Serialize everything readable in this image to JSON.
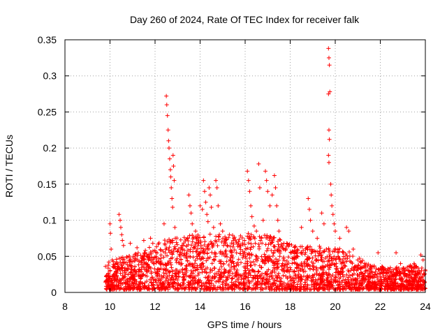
{
  "chart_data": {
    "type": "scatter",
    "title": "Day 260 of 2024, Rate Of TEC Index for receiver falk",
    "xlabel": "GPS time / hours",
    "ylabel": "ROTI / TECUs",
    "xlim": [
      8,
      24
    ],
    "ylim": [
      0,
      0.35
    ],
    "x_ticks": [
      8,
      10,
      12,
      14,
      16,
      18,
      20,
      22,
      24
    ],
    "x_tick_labels": [
      "8",
      "10",
      "12",
      "14",
      "16",
      "18",
      "20",
      "22",
      "24"
    ],
    "y_ticks": [
      0,
      0.05,
      0.1,
      0.15,
      0.2,
      0.25,
      0.3,
      0.35
    ],
    "y_tick_labels": [
      "0",
      "0.05",
      "0.1",
      "0.15",
      "0.2",
      "0.25",
      "0.3",
      "0.35"
    ],
    "grid": true,
    "marker": "plus",
    "marker_color": "#ff0000",
    "series": [
      {
        "points": [
          [
            9.8,
            0.036
          ],
          [
            9.95,
            0.042
          ],
          [
            10.0,
            0.095
          ],
          [
            10.02,
            0.082
          ],
          [
            10.05,
            0.06
          ],
          [
            10.1,
            0.045
          ],
          [
            10.4,
            0.108
          ],
          [
            10.45,
            0.1
          ],
          [
            10.48,
            0.09
          ],
          [
            10.52,
            0.08
          ],
          [
            10.55,
            0.072
          ],
          [
            10.6,
            0.065
          ],
          [
            10.9,
            0.068
          ],
          [
            11.2,
            0.062
          ],
          [
            11.5,
            0.072
          ],
          [
            11.8,
            0.075
          ],
          [
            11.9,
            0.068
          ],
          [
            12.4,
            0.095
          ],
          [
            12.5,
            0.272
          ],
          [
            12.52,
            0.26
          ],
          [
            12.55,
            0.245
          ],
          [
            12.58,
            0.225
          ],
          [
            12.6,
            0.21
          ],
          [
            12.62,
            0.2
          ],
          [
            12.65,
            0.185
          ],
          [
            12.68,
            0.17
          ],
          [
            12.7,
            0.16
          ],
          [
            12.72,
            0.145
          ],
          [
            12.75,
            0.13
          ],
          [
            12.78,
            0.118
          ],
          [
            12.8,
            0.19
          ],
          [
            12.82,
            0.175
          ],
          [
            12.85,
            0.155
          ],
          [
            12.88,
            0.09
          ],
          [
            12.9,
            0.075
          ],
          [
            13.2,
            0.065
          ],
          [
            13.5,
            0.135
          ],
          [
            13.55,
            0.12
          ],
          [
            13.6,
            0.11
          ],
          [
            13.65,
            0.095
          ],
          [
            13.8,
            0.085
          ],
          [
            14.0,
            0.12
          ],
          [
            14.1,
            0.115
          ],
          [
            14.15,
            0.155
          ],
          [
            14.2,
            0.14
          ],
          [
            14.25,
            0.125
          ],
          [
            14.3,
            0.108
          ],
          [
            14.35,
            0.098
          ],
          [
            14.4,
            0.145
          ],
          [
            14.45,
            0.135
          ],
          [
            14.5,
            0.118
          ],
          [
            14.6,
            0.09
          ],
          [
            14.7,
            0.155
          ],
          [
            14.75,
            0.145
          ],
          [
            14.8,
            0.12
          ],
          [
            14.9,
            0.095
          ],
          [
            15.0,
            0.085
          ],
          [
            15.3,
            0.08
          ],
          [
            15.5,
            0.075
          ],
          [
            15.7,
            0.07
          ],
          [
            15.8,
            0.065
          ],
          [
            16.1,
            0.168
          ],
          [
            16.15,
            0.155
          ],
          [
            16.2,
            0.14
          ],
          [
            16.25,
            0.12
          ],
          [
            16.3,
            0.105
          ],
          [
            16.4,
            0.092
          ],
          [
            16.5,
            0.085
          ],
          [
            16.6,
            0.178
          ],
          [
            16.65,
            0.145
          ],
          [
            16.8,
            0.1
          ],
          [
            16.9,
            0.168
          ],
          [
            16.95,
            0.155
          ],
          [
            17.0,
            0.14
          ],
          [
            17.1,
            0.12
          ],
          [
            17.2,
            0.135
          ],
          [
            17.3,
            0.162
          ],
          [
            17.35,
            0.145
          ],
          [
            17.4,
            0.12
          ],
          [
            17.45,
            0.1
          ],
          [
            17.5,
            0.085
          ],
          [
            17.8,
            0.06
          ],
          [
            18.2,
            0.055
          ],
          [
            18.5,
            0.09
          ],
          [
            18.8,
            0.13
          ],
          [
            18.85,
            0.115
          ],
          [
            18.9,
            0.1
          ],
          [
            19.0,
            0.085
          ],
          [
            19.2,
            0.075
          ],
          [
            19.4,
            0.11
          ],
          [
            19.5,
            0.095
          ],
          [
            19.7,
            0.338
          ],
          [
            19.72,
            0.325
          ],
          [
            19.74,
            0.315
          ],
          [
            19.76,
            0.278
          ],
          [
            19.7,
            0.275
          ],
          [
            19.72,
            0.225
          ],
          [
            19.74,
            0.212
          ],
          [
            19.7,
            0.19
          ],
          [
            19.72,
            0.18
          ],
          [
            19.8,
            0.15
          ],
          [
            19.82,
            0.135
          ],
          [
            19.85,
            0.12
          ],
          [
            19.9,
            0.108
          ],
          [
            19.95,
            0.095
          ],
          [
            20.0,
            0.085
          ],
          [
            20.2,
            0.075
          ],
          [
            20.5,
            0.09
          ],
          [
            20.6,
            0.085
          ],
          [
            20.8,
            0.06
          ],
          [
            21.0,
            0.045
          ],
          [
            21.3,
            0.04
          ],
          [
            21.6,
            0.035
          ],
          [
            21.9,
            0.055
          ],
          [
            22.1,
            0.035
          ],
          [
            22.4,
            0.032
          ],
          [
            22.7,
            0.055
          ],
          [
            22.9,
            0.04
          ],
          [
            23.2,
            0.035
          ],
          [
            23.5,
            0.04
          ],
          [
            23.8,
            0.052
          ],
          [
            23.9,
            0.045
          ],
          [
            24.0,
            0.03
          ]
        ]
      }
    ],
    "dense_band": {
      "x_start": 9.8,
      "x_end": 24.0,
      "approx_points": 2600,
      "envelope": [
        [
          9.8,
          0.035
        ],
        [
          10.5,
          0.045
        ],
        [
          11.5,
          0.055
        ],
        [
          12.5,
          0.07
        ],
        [
          13.5,
          0.075
        ],
        [
          14.5,
          0.08
        ],
        [
          15.5,
          0.075
        ],
        [
          16.5,
          0.08
        ],
        [
          17.5,
          0.07
        ],
        [
          18.5,
          0.06
        ],
        [
          19.5,
          0.06
        ],
        [
          20.5,
          0.055
        ],
        [
          21.5,
          0.035
        ],
        [
          22.5,
          0.03
        ],
        [
          23.5,
          0.035
        ],
        [
          24.0,
          0.03
        ]
      ]
    }
  }
}
